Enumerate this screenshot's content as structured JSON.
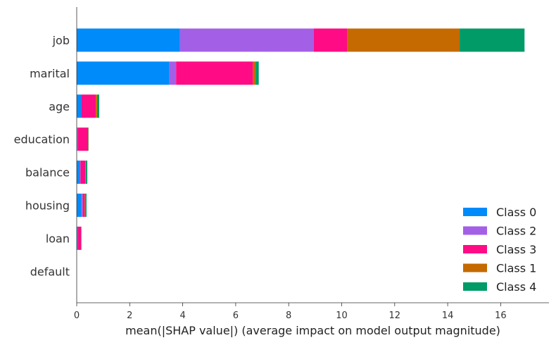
{
  "chart_data": {
    "type": "bar",
    "orientation": "horizontal",
    "stacked": true,
    "categories": [
      "job",
      "marital",
      "age",
      "education",
      "balance",
      "housing",
      "loan",
      "default"
    ],
    "series": [
      {
        "name": "Class 0",
        "color": "#008bfb",
        "values": [
          3.9,
          3.5,
          0.17,
          0.02,
          0.12,
          0.18,
          0.03,
          0.0
        ]
      },
      {
        "name": "Class 2",
        "color": "#a45fe7",
        "values": [
          5.05,
          0.25,
          0.0,
          0.02,
          0.02,
          0.05,
          0.01,
          0.0
        ]
      },
      {
        "name": "Class 3",
        "color": "#ff0b86",
        "values": [
          1.25,
          2.9,
          0.55,
          0.39,
          0.18,
          0.07,
          0.12,
          0.0
        ]
      },
      {
        "name": "Class 1",
        "color": "#c46a00",
        "values": [
          4.25,
          0.1,
          0.05,
          0.01,
          0.02,
          0.02,
          0.01,
          0.0
        ]
      },
      {
        "name": "Class 4",
        "color": "#009b66",
        "values": [
          2.45,
          0.12,
          0.08,
          0.01,
          0.06,
          0.05,
          0.01,
          0.0
        ]
      }
    ],
    "legend_order": [
      "Class 0",
      "Class 2",
      "Class 3",
      "Class 1",
      "Class 4"
    ],
    "legend_position": "lower-right",
    "xlabel": "mean(|SHAP value|) (average impact on model output magnitude)",
    "xlim": [
      0,
      17.7
    ],
    "xticks": [
      "0",
      "2",
      "4",
      "6",
      "8",
      "10",
      "12",
      "14",
      "16"
    ],
    "grid": false
  }
}
